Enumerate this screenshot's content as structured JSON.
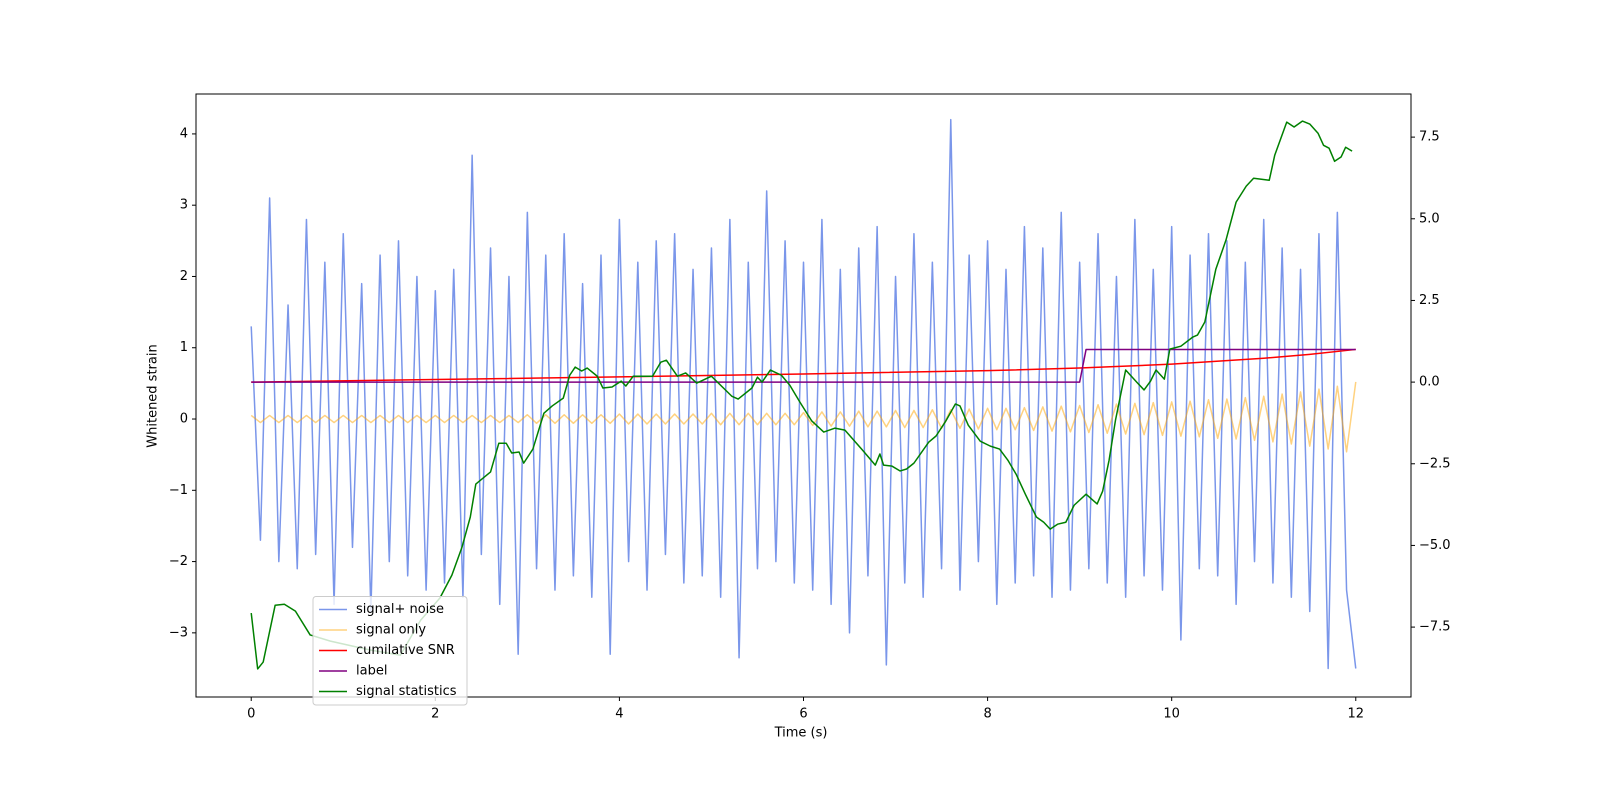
{
  "chart_data": {
    "type": "line",
    "xlabel": "Time (s)",
    "ylabel": "Whitened strain",
    "xlim": [
      -0.6,
      12.6
    ],
    "ylim": [
      -3.9,
      4.56
    ],
    "y2lim": [
      -9.64,
      8.82
    ],
    "xticks": [
      0,
      2,
      4,
      6,
      8,
      10,
      12
    ],
    "yticks": [
      {
        "value": -3,
        "label": "−3"
      },
      {
        "value": -2,
        "label": "−2"
      },
      {
        "value": -1,
        "label": "−1"
      },
      0,
      1,
      2,
      3,
      4
    ],
    "y2ticks": [
      {
        "value": -7.5,
        "label": "−7.5"
      },
      {
        "value": -5,
        "label": "−5.0"
      },
      {
        "value": -2.5,
        "label": "−2.5"
      },
      {
        "value": 0,
        "label": "0.0"
      },
      2.5,
      {
        "value": 5,
        "label": "5.0"
      },
      7.5
    ],
    "legend": "lower left",
    "x": [
      0,
      0.1,
      0.2,
      0.3,
      0.4,
      0.5,
      0.6,
      0.7,
      0.8,
      0.9,
      1,
      1.1,
      1.2,
      1.3,
      1.4,
      1.5,
      1.6,
      1.7,
      1.8,
      1.9,
      2,
      2.1,
      2.2,
      2.3,
      2.4,
      2.5,
      2.6,
      2.7,
      2.8,
      2.9,
      3,
      3.1,
      3.2,
      3.3,
      3.4,
      3.5,
      3.6,
      3.7,
      3.8,
      3.9,
      4,
      4.1,
      4.2,
      4.3,
      4.4,
      4.5,
      4.6,
      4.7,
      4.8,
      4.9,
      5,
      5.1,
      5.2,
      5.3,
      5.4,
      5.5,
      5.6,
      5.7,
      5.8,
      5.9,
      6,
      6.1,
      6.2,
      6.3,
      6.4,
      6.5,
      6.6,
      6.7,
      6.8,
      6.9,
      7,
      7.1,
      7.2,
      7.3,
      7.4,
      7.5,
      7.6,
      7.7,
      7.8,
      7.9,
      8,
      8.1,
      8.2,
      8.3,
      8.4,
      8.5,
      8.6,
      8.7,
      8.8,
      8.9,
      9,
      9.1,
      9.2,
      9.3,
      9.4,
      9.5,
      9.6,
      9.7,
      9.8,
      9.9,
      10,
      10.1,
      10.2,
      10.3,
      10.4,
      10.5,
      10.6,
      10.7,
      10.8,
      10.9,
      11,
      11.1,
      11.2,
      11.3,
      11.4,
      11.5,
      11.6,
      11.7,
      11.8,
      11.9,
      12
    ],
    "series": [
      {
        "name": "signal+ noise",
        "color": "#4169e1",
        "opacity": 0.7,
        "values": [
          1.3,
          -1.7,
          3.1,
          -2.0,
          1.6,
          -2.1,
          2.8,
          -1.9,
          2.2,
          -2.6,
          2.6,
          -1.8,
          1.9,
          -2.7,
          2.3,
          -2.0,
          2.5,
          -2.2,
          2.0,
          -2.4,
          1.8,
          -2.3,
          2.1,
          -2.5,
          3.7,
          -1.9,
          2.4,
          -2.6,
          2.0,
          -3.3,
          2.9,
          -2.1,
          2.3,
          -2.4,
          2.6,
          -2.2,
          1.9,
          -2.5,
          2.3,
          -3.3,
          2.8,
          -2.0,
          2.2,
          -2.4,
          2.5,
          -1.9,
          2.6,
          -2.3,
          2.1,
          -2.2,
          2.4,
          -2.5,
          2.8,
          -3.35,
          2.2,
          -2.1,
          3.2,
          -2.0,
          2.5,
          -2.3,
          2.2,
          -2.4,
          2.8,
          -2.6,
          2.1,
          -3.0,
          2.4,
          -2.2,
          2.7,
          -3.45,
          2.0,
          -2.3,
          2.6,
          -2.5,
          2.2,
          -2.1,
          4.2,
          -2.4,
          2.3,
          -2.0,
          2.5,
          -2.6,
          2.1,
          -2.3,
          2.7,
          -2.2,
          2.4,
          -2.5,
          2.9,
          -2.4,
          2.2,
          -2.1,
          2.6,
          -2.3,
          2.0,
          -2.5,
          2.8,
          -2.2,
          2.1,
          -2.4,
          2.7,
          -3.1,
          2.3,
          -2.1,
          2.6,
          -2.2,
          2.5,
          -2.6,
          2.2,
          -2.0,
          2.8,
          -2.3,
          2.4,
          -2.5,
          2.1,
          -2.7,
          2.6,
          -3.5,
          2.9,
          -2.4,
          -3.5
        ]
      },
      {
        "name": "signal only",
        "color": "#ffa500",
        "opacity": 0.5,
        "values": [
          0.05,
          -0.05,
          0.05,
          -0.05,
          0.05,
          -0.05,
          0.05,
          -0.05,
          0.05,
          -0.05,
          0.05,
          -0.05,
          0.05,
          -0.05,
          0.05,
          -0.05,
          0.05,
          -0.05,
          0.05,
          -0.05,
          0.05,
          -0.05,
          0.05,
          -0.05,
          0.05,
          -0.05,
          0.05,
          -0.05,
          0.05,
          -0.05,
          0.06,
          -0.06,
          0.06,
          -0.06,
          0.06,
          -0.06,
          0.06,
          -0.06,
          0.06,
          -0.06,
          0.07,
          -0.07,
          0.07,
          -0.07,
          0.07,
          -0.07,
          0.07,
          -0.07,
          0.07,
          -0.07,
          0.08,
          -0.08,
          0.08,
          -0.08,
          0.08,
          -0.08,
          0.08,
          -0.08,
          0.08,
          -0.08,
          0.09,
          -0.09,
          0.1,
          -0.1,
          0.1,
          -0.1,
          0.11,
          -0.11,
          0.11,
          -0.11,
          0.12,
          -0.12,
          0.12,
          -0.12,
          0.13,
          -0.13,
          0.13,
          -0.13,
          0.14,
          -0.14,
          0.15,
          -0.15,
          0.15,
          -0.15,
          0.16,
          -0.16,
          0.17,
          -0.17,
          0.18,
          -0.18,
          0.19,
          -0.19,
          0.2,
          -0.2,
          0.21,
          -0.21,
          0.22,
          -0.22,
          0.23,
          -0.23,
          0.24,
          -0.24,
          0.25,
          -0.25,
          0.27,
          -0.27,
          0.28,
          -0.28,
          0.3,
          -0.3,
          0.32,
          -0.32,
          0.35,
          -0.35,
          0.38,
          -0.38,
          0.42,
          -0.42,
          0.46,
          -0.46,
          0.52
        ]
      },
      {
        "name": "cumilative SNR",
        "color": "#ff0000",
        "axis": "y2",
        "x": [
          0,
          2,
          4,
          6,
          8,
          9,
          10,
          11,
          11.5,
          12
        ],
        "values": [
          0,
          0.08,
          0.16,
          0.25,
          0.35,
          0.43,
          0.55,
          0.73,
          0.85,
          1.0
        ]
      },
      {
        "name": "label",
        "color": "#800080",
        "axis": "y2",
        "x": [
          0,
          9.0,
          9.07,
          12
        ],
        "values": [
          0,
          0,
          1,
          1
        ]
      },
      {
        "name": "signal statistics",
        "color": "#008000",
        "axis": "y2",
        "x": [
          0,
          0.07,
          0.13,
          0.26,
          0.36,
          0.48,
          0.64,
          0.86,
          1.29,
          1.62,
          1.84,
          2.05,
          2.18,
          2.29,
          2.38,
          2.44,
          2.6,
          2.69,
          2.77,
          2.83,
          2.91,
          2.96,
          3.06,
          3.18,
          3.27,
          3.39,
          3.46,
          3.52,
          3.59,
          3.65,
          3.76,
          3.82,
          3.92,
          4.02,
          4.07,
          4.15,
          4.36,
          4.45,
          4.51,
          4.63,
          4.72,
          4.84,
          5.0,
          5.22,
          5.29,
          5.44,
          5.5,
          5.55,
          5.64,
          5.76,
          5.85,
          5.96,
          6.09,
          6.22,
          6.34,
          6.45,
          6.64,
          6.78,
          6.83,
          6.87,
          6.96,
          7.05,
          7.12,
          7.2,
          7.36,
          7.44,
          7.54,
          7.65,
          7.7,
          7.79,
          7.92,
          8.03,
          8.13,
          8.22,
          8.31,
          8.41,
          8.53,
          8.61,
          8.68,
          8.76,
          8.85,
          8.94,
          9.07,
          9.19,
          9.25,
          9.32,
          9.39,
          9.5,
          9.62,
          9.7,
          9.77,
          9.83,
          9.92,
          9.98,
          10.1,
          10.23,
          10.28,
          10.36,
          10.48,
          10.59,
          10.7,
          10.81,
          10.89,
          11.06,
          11.12,
          11.25,
          11.33,
          11.42,
          11.5,
          11.59,
          11.65,
          11.71,
          11.77,
          11.84,
          11.89,
          11.96
        ],
        "values": [
          -7.07,
          -8.78,
          -8.57,
          -6.83,
          -6.8,
          -7.01,
          -7.74,
          -7.93,
          -8.2,
          -8.36,
          -7.29,
          -6.61,
          -5.91,
          -5.05,
          -4.13,
          -3.12,
          -2.75,
          -1.87,
          -1.87,
          -2.17,
          -2.14,
          -2.48,
          -2.05,
          -0.95,
          -0.73,
          -0.49,
          0.21,
          0.46,
          0.34,
          0.43,
          0.18,
          -0.18,
          -0.15,
          0.03,
          -0.12,
          0.18,
          0.18,
          0.61,
          0.67,
          0.18,
          0.28,
          -0.03,
          0.18,
          -0.43,
          -0.52,
          -0.18,
          0.15,
          0,
          0.37,
          0.21,
          -0.09,
          -0.61,
          -1.19,
          -1.53,
          -1.41,
          -1.47,
          -2.08,
          -2.54,
          -2.2,
          -2.54,
          -2.57,
          -2.72,
          -2.66,
          -2.48,
          -1.84,
          -1.65,
          -1.22,
          -0.67,
          -0.73,
          -1.32,
          -1.81,
          -1.96,
          -2.05,
          -2.39,
          -2.82,
          -3.43,
          -4.13,
          -4.29,
          -4.5,
          -4.35,
          -4.29,
          -3.77,
          -3.43,
          -3.73,
          -3.34,
          -2.39,
          -1.16,
          0.37,
          0,
          -0.24,
          0.03,
          0.37,
          0.09,
          1.01,
          1.1,
          1.38,
          1.44,
          1.84,
          3.46,
          4.35,
          5.51,
          6.0,
          6.24,
          6.18,
          6.95,
          7.96,
          7.81,
          7.99,
          7.9,
          7.62,
          7.25,
          7.16,
          6.76,
          6.89,
          7.19,
          7.07
        ]
      }
    ]
  }
}
